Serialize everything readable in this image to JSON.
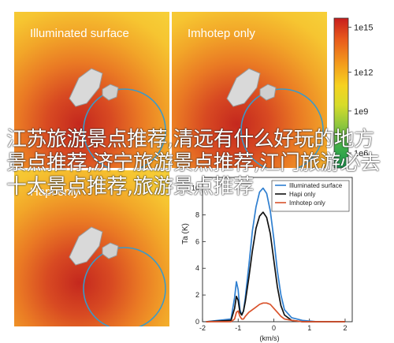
{
  "panels": [
    {
      "title": "Illuminated surface"
    },
    {
      "title": "Imhotep only"
    },
    {
      "title": "Hapi only"
    }
  ],
  "colorbar": {
    "ticks": [
      "1e15",
      "1e12",
      "1e9",
      "1e6"
    ],
    "scale": "log",
    "colors": [
      "#c81d1d",
      "#e85a1c",
      "#f39a1c",
      "#f6d21f",
      "#d7dc2a",
      "#8cc63e",
      "#3fae49",
      "#1a9850"
    ]
  },
  "overlay_text": "江苏旅游景点推荐,清远有什么好玩的地方景点推荐,济宁旅游景点推荐,江门旅游必去十大景点推荐,旅游景点推荐",
  "chart_data": {
    "type": "line",
    "xlabel": "(km/s)",
    "ylabel": "Ta (K)",
    "x_ticks": [
      "-2",
      "-1",
      "0",
      "1",
      "2"
    ],
    "y_ticks": [
      "0",
      "2",
      "4",
      "6",
      "8",
      "10"
    ],
    "xlim": [
      -2,
      2.2
    ],
    "ylim": [
      0,
      10.8
    ],
    "grid": false,
    "legend": "top-right",
    "x": [
      -1.9,
      -1.2,
      -1.1,
      -1.05,
      -1.0,
      -0.95,
      -0.9,
      -0.85,
      -0.8,
      -0.7,
      -0.6,
      -0.5,
      -0.4,
      -0.3,
      -0.2,
      -0.1,
      0.0,
      0.1,
      0.2,
      0.3,
      0.5,
      0.8,
      1.2,
      2.0
    ],
    "series": [
      {
        "name": "Illuminated surface",
        "color": "#2f7fd0",
        "values": [
          0,
          0.2,
          1.8,
          3.0,
          2.4,
          0.9,
          0.5,
          0.8,
          1.8,
          4.2,
          6.8,
          8.6,
          9.7,
          10.0,
          9.6,
          8.3,
          6.2,
          3.8,
          2.0,
          0.9,
          0.3,
          0.1,
          0.0,
          0.0
        ]
      },
      {
        "name": "Hapi only",
        "color": "#111111",
        "values": [
          0,
          0.1,
          1.0,
          1.9,
          1.6,
          0.7,
          0.5,
          0.8,
          1.5,
          3.3,
          5.3,
          7.0,
          7.9,
          8.2,
          7.8,
          6.6,
          4.6,
          2.6,
          1.2,
          0.5,
          0.1,
          0.0,
          0.0,
          0.0
        ]
      },
      {
        "name": "Imhotep only",
        "color": "#d9522b",
        "values": [
          0,
          0.0,
          0.2,
          0.7,
          0.8,
          0.4,
          0.2,
          0.2,
          0.4,
          0.7,
          0.9,
          1.1,
          1.3,
          1.4,
          1.4,
          1.3,
          1.0,
          0.7,
          0.4,
          0.2,
          0.1,
          0.0,
          0.0,
          0.0
        ]
      }
    ]
  }
}
